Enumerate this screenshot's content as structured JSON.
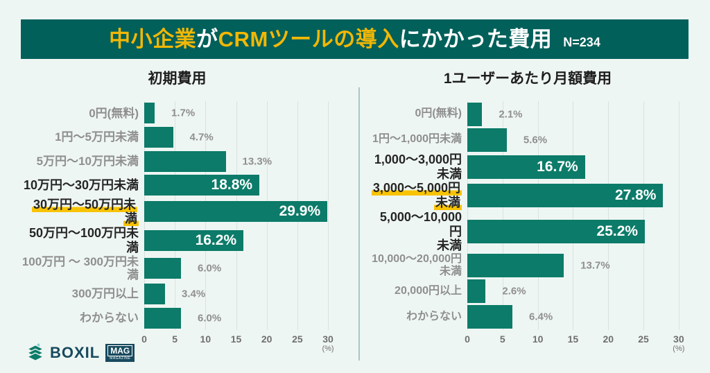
{
  "colors": {
    "background": "#EEF6F3",
    "header_bg": "#01605A",
    "accent_yellow": "#F2B705",
    "highlight_yellow": "#F8C303",
    "bar": "#0C7B69",
    "label_gray": "#8F8F8F",
    "label_dark": "#252525",
    "grid": "#D9E2DE",
    "axis_text": "#6F6F6F",
    "divider": "#A9C6C7",
    "logo_navy": "#174A5E"
  },
  "header": {
    "title_parts": [
      {
        "text": "中小企業",
        "tone": "accent"
      },
      {
        "text": "が",
        "tone": "white"
      },
      {
        "text": "CRMツールの導入",
        "tone": "accent"
      },
      {
        "text": "にかかった費用",
        "tone": "white"
      }
    ],
    "sample_label": "N=234"
  },
  "chart_data": [
    {
      "type": "bar",
      "orientation": "horizontal",
      "title": "初期費用",
      "xlabel": "(%)",
      "xlim": [
        0,
        30
      ],
      "ticks": [
        0,
        5,
        10,
        15,
        20,
        25,
        30
      ],
      "grid": true,
      "legend": false,
      "categories": [
        "0円(無料)",
        "1円〜5万円未満",
        "5万円〜10万円未満",
        "10万円〜30万円未満",
        "30万円〜50万円未満",
        "50万円〜100万円未満",
        "100万円 〜 300万円未満",
        "300万円以上",
        "わからない"
      ],
      "values": [
        1.7,
        4.7,
        13.3,
        18.8,
        29.9,
        16.2,
        6.0,
        3.4,
        6.0
      ],
      "rows": [
        {
          "label": "0円(無料)",
          "value": 1.7,
          "value_label": "1.7%",
          "style": "normal",
          "value_position": "outside"
        },
        {
          "label": "1円〜5万円未満",
          "value": 4.7,
          "value_label": "4.7%",
          "style": "normal",
          "value_position": "outside"
        },
        {
          "label": "5万円〜10万円未満",
          "value": 13.3,
          "value_label": "13.3%",
          "style": "normal",
          "value_position": "outside"
        },
        {
          "label": "10万円〜30万円未満",
          "value": 18.8,
          "value_label": "18.8%",
          "style": "bold",
          "value_position": "inside"
        },
        {
          "label": "30万円〜50万円未満",
          "value": 29.9,
          "value_label": "29.9%",
          "style": "highlight",
          "value_position": "inside"
        },
        {
          "label": "50万円〜100万円未満",
          "value": 16.2,
          "value_label": "16.2%",
          "style": "bold",
          "value_position": "inside"
        },
        {
          "label": "100万円 〜 300万円未満",
          "value": 6.0,
          "value_label": "6.0%",
          "style": "normal",
          "value_position": "outside"
        },
        {
          "label": "300万円以上",
          "value": 3.4,
          "value_label": "3.4%",
          "style": "normal",
          "value_position": "outside"
        },
        {
          "label": "わからない",
          "value": 6.0,
          "value_label": "6.0%",
          "style": "normal",
          "value_position": "outside"
        }
      ]
    },
    {
      "type": "bar",
      "orientation": "horizontal",
      "title": "1ユーザーあたり月額費用",
      "xlabel": "(%)",
      "xlim": [
        0,
        30
      ],
      "ticks": [
        0,
        5,
        10,
        15,
        20,
        25,
        30
      ],
      "grid": true,
      "legend": false,
      "categories": [
        "0円(無料)",
        "1円〜1,000円未満",
        "1,000〜3,000円未満",
        "3,000〜5,000円未満",
        "5,000〜10,000円未満",
        "10,000〜20,000円未満",
        "20,000円以上",
        "わからない"
      ],
      "values": [
        2.1,
        5.6,
        16.7,
        27.8,
        25.2,
        13.7,
        2.6,
        6.4
      ],
      "rows": [
        {
          "label": "0円(無料)",
          "value": 2.1,
          "value_label": "2.1%",
          "style": "normal",
          "value_position": "outside"
        },
        {
          "label": "1円〜1,000円未満",
          "value": 5.6,
          "value_label": "5.6%",
          "style": "normal",
          "value_position": "outside"
        },
        {
          "label": "1,000〜3,000円\n未満",
          "value": 16.7,
          "value_label": "16.7%",
          "style": "bold",
          "value_position": "inside"
        },
        {
          "label": "3,000〜5,000円\n未満",
          "value": 27.8,
          "value_label": "27.8%",
          "style": "highlight",
          "value_position": "inside"
        },
        {
          "label": "5,000〜10,000円\n未満",
          "value": 25.2,
          "value_label": "25.2%",
          "style": "bold",
          "value_position": "inside"
        },
        {
          "label": "10,000〜20,000円\n未満",
          "value": 13.7,
          "value_label": "13.7%",
          "style": "normal",
          "value_position": "outside"
        },
        {
          "label": "20,000円以上",
          "value": 2.6,
          "value_label": "2.6%",
          "style": "normal",
          "value_position": "outside"
        },
        {
          "label": "わからない",
          "value": 6.4,
          "value_label": "6.4%",
          "style": "normal",
          "value_position": "outside"
        }
      ]
    }
  ],
  "logo": {
    "brand": "BOXIL",
    "badge": "MAG",
    "badge_sub": "MAGAZINE"
  }
}
